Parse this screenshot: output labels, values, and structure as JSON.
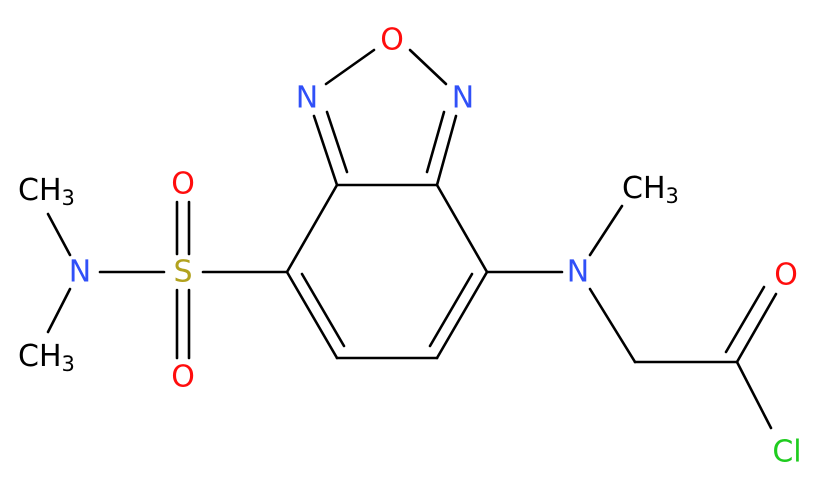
{
  "atoms": [
    {
      "label": "O"
    },
    {
      "label": "N"
    },
    {
      "label": "N"
    },
    {
      "label": "S"
    },
    {
      "label": "O"
    },
    {
      "label": "O"
    },
    {
      "label": "N"
    },
    {
      "label": "CH",
      "sub": "3"
    },
    {
      "label": "CH",
      "sub": "3"
    },
    {
      "label": "N"
    },
    {
      "label": "CH",
      "sub": "3"
    },
    {
      "label": "O"
    },
    {
      "label": "Cl"
    }
  ]
}
